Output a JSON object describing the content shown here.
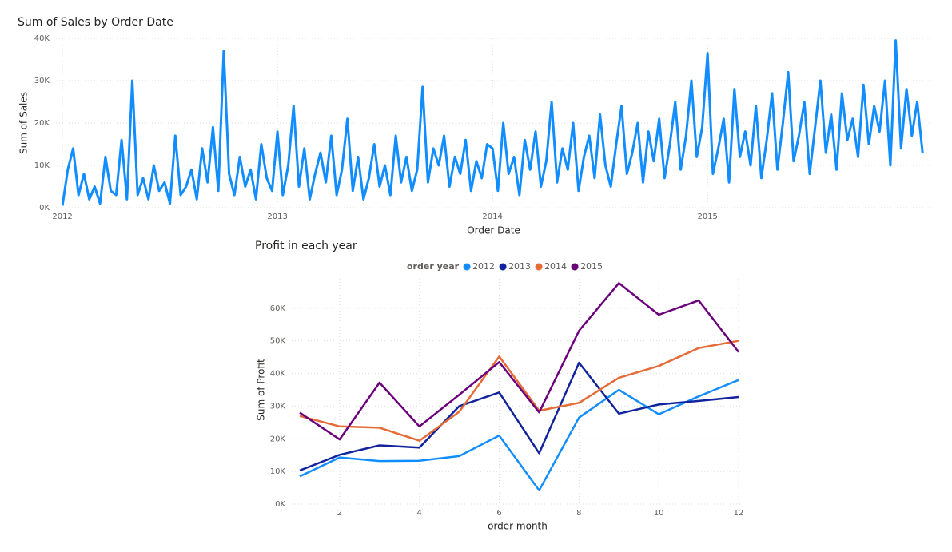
{
  "chart_data": [
    {
      "type": "line",
      "title": "Sum of Sales by Order Date",
      "x_label": "Order Date",
      "y_label": "Sum of Sales",
      "color": "#118DFF",
      "grid": true,
      "xlim": [
        2011.97,
        2016.04
      ],
      "xticks": [
        2012,
        2013,
        2014,
        2015
      ],
      "ylim": [
        0,
        40000
      ],
      "yticks": [
        {
          "value": 0,
          "label": "0K"
        },
        {
          "value": 10000,
          "label": "10K"
        },
        {
          "value": 20000,
          "label": "20K"
        },
        {
          "value": 30000,
          "label": "30K"
        },
        {
          "value": 40000,
          "label": "40K"
        }
      ],
      "x": [
        2012,
        2012.025,
        2012.05,
        2012.075,
        2012.1,
        2012.125,
        2012.15,
        2012.175,
        2012.2,
        2012.225,
        2012.25,
        2012.275,
        2012.3,
        2012.325,
        2012.35,
        2012.375,
        2012.4,
        2012.425,
        2012.45,
        2012.475,
        2012.5,
        2012.525,
        2012.55,
        2012.575,
        2012.6,
        2012.625,
        2012.65,
        2012.675,
        2012.7,
        2012.725,
        2012.75,
        2012.775,
        2012.8,
        2012.825,
        2012.85,
        2012.875,
        2012.9,
        2012.925,
        2012.95,
        2012.975,
        2013,
        2013.025,
        2013.05,
        2013.075,
        2013.1,
        2013.125,
        2013.15,
        2013.175,
        2013.2,
        2013.225,
        2013.25,
        2013.275,
        2013.3,
        2013.325,
        2013.35,
        2013.375,
        2013.4,
        2013.425,
        2013.45,
        2013.475,
        2013.5,
        2013.525,
        2013.55,
        2013.575,
        2013.6,
        2013.625,
        2013.65,
        2013.675,
        2013.7,
        2013.725,
        2013.75,
        2013.775,
        2013.8,
        2013.825,
        2013.85,
        2013.875,
        2013.9,
        2013.925,
        2013.95,
        2013.975,
        2014,
        2014.025,
        2014.05,
        2014.075,
        2014.1,
        2014.125,
        2014.15,
        2014.175,
        2014.2,
        2014.225,
        2014.25,
        2014.275,
        2014.3,
        2014.325,
        2014.35,
        2014.375,
        2014.4,
        2014.425,
        2014.45,
        2014.475,
        2014.5,
        2014.525,
        2014.55,
        2014.575,
        2014.6,
        2014.625,
        2014.65,
        2014.675,
        2014.7,
        2014.725,
        2014.75,
        2014.775,
        2014.8,
        2014.825,
        2014.85,
        2014.875,
        2014.9,
        2014.925,
        2014.95,
        2014.975,
        2015,
        2015.025,
        2015.05,
        2015.075,
        2015.1,
        2015.125,
        2015.15,
        2015.175,
        2015.2,
        2015.225,
        2015.25,
        2015.275,
        2015.3,
        2015.325,
        2015.35,
        2015.375,
        2015.4,
        2015.425,
        2015.45,
        2015.475,
        2015.5,
        2015.525,
        2015.55,
        2015.575,
        2015.6,
        2015.625,
        2015.65,
        2015.675,
        2015.7,
        2015.725,
        2015.75,
        2015.775,
        2015.8,
        2015.825,
        2015.85,
        2015.875,
        2015.9,
        2015.925,
        2015.95,
        2015.975,
        2016
      ],
      "values": [
        500,
        9000,
        14000,
        3000,
        8000,
        2000,
        5000,
        1000,
        12000,
        4000,
        3000,
        16000,
        2000,
        30000,
        3000,
        7000,
        2000,
        10000,
        4000,
        6000,
        1000,
        17000,
        3000,
        5000,
        9000,
        2000,
        14000,
        6000,
        19000,
        4000,
        37000,
        8000,
        3000,
        12000,
        5000,
        9000,
        2000,
        15000,
        7000,
        4000,
        18000,
        3000,
        10000,
        24000,
        5000,
        14000,
        2000,
        8000,
        13000,
        6000,
        17000,
        3000,
        9000,
        21000,
        4000,
        12000,
        2000,
        7000,
        15000,
        5000,
        10000,
        3000,
        17000,
        6000,
        12000,
        4000,
        9000,
        28500,
        6000,
        14000,
        10000,
        17000,
        5000,
        12000,
        8000,
        16000,
        4000,
        11000,
        7000,
        15000,
        14000,
        4000,
        20000,
        8000,
        12000,
        3000,
        16000,
        9000,
        18000,
        5000,
        11000,
        25000,
        6000,
        14000,
        9000,
        20000,
        4000,
        12000,
        17000,
        7000,
        22000,
        10000,
        5000,
        15000,
        24000,
        8000,
        13000,
        20000,
        6000,
        18000,
        11000,
        21000,
        7000,
        15000,
        25000,
        9000,
        17000,
        30000,
        12000,
        19000,
        36500,
        8000,
        14000,
        21000,
        6000,
        28000,
        12000,
        18000,
        10000,
        24000,
        7000,
        16000,
        27000,
        9000,
        20000,
        32000,
        11000,
        17000,
        25000,
        8000,
        19000,
        30000,
        13000,
        22000,
        9000,
        27000,
        16000,
        21000,
        12000,
        29000,
        15000,
        24000,
        18000,
        30000,
        10000,
        39500,
        14000,
        28000,
        17000,
        25000,
        13000
      ]
    },
    {
      "type": "line",
      "title": "Profit in each year",
      "x_label": "order month",
      "y_label": "Sum of Profit",
      "legend_title": "order year",
      "grid": true,
      "xlim": [
        0.8,
        12.12
      ],
      "xticks": [
        2,
        4,
        6,
        8,
        10,
        12
      ],
      "ylim": [
        0,
        70000
      ],
      "yticks": [
        {
          "value": 0,
          "label": "0K"
        },
        {
          "value": 10000,
          "label": "10K"
        },
        {
          "value": 20000,
          "label": "20K"
        },
        {
          "value": 30000,
          "label": "30K"
        },
        {
          "value": 40000,
          "label": "40K"
        },
        {
          "value": 50000,
          "label": "50K"
        },
        {
          "value": 60000,
          "label": "60K"
        }
      ],
      "x": [
        1,
        2,
        3,
        4,
        5,
        6,
        7,
        8,
        9,
        10,
        11,
        12
      ],
      "series": [
        {
          "name": "2012",
          "color": "#118DFF",
          "values": [
            8500,
            14300,
            13200,
            13300,
            14700,
            21000,
            4200,
            26500,
            35000,
            27500,
            33000,
            38000
          ]
        },
        {
          "name": "2013",
          "color": "#12239E",
          "values": [
            10300,
            15100,
            18000,
            17300,
            30000,
            34200,
            15600,
            43300,
            27700,
            30500,
            31600,
            32800
          ]
        },
        {
          "name": "2014",
          "color": "#E66C37",
          "values": [
            27000,
            23800,
            23400,
            19400,
            28300,
            45200,
            28600,
            31000,
            38700,
            42300,
            47800,
            50000
          ]
        },
        {
          "name": "2015",
          "color": "#6B007B",
          "values": [
            28000,
            19800,
            37200,
            23800,
            33500,
            43500,
            28100,
            53100,
            67700,
            58000,
            62400,
            46600
          ]
        }
      ]
    }
  ]
}
